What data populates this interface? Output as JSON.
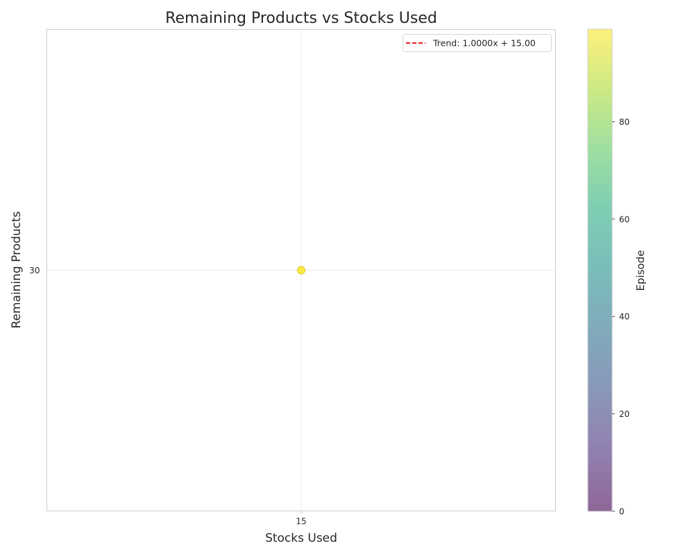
{
  "chart_data": {
    "type": "scatter",
    "title": "Remaining Products vs Stocks Used",
    "xlabel": "Stocks Used",
    "ylabel": "Remaining Products",
    "x_ticks": [
      15
    ],
    "y_ticks": [
      30
    ],
    "xlim": [
      14.5,
      15.5
    ],
    "ylim": [
      29.5,
      30.5
    ],
    "grid": true,
    "points": [
      {
        "x": 15,
        "y": 30,
        "episode": 99
      }
    ],
    "trend": {
      "label": "Trend: 1.0000x + 15.00",
      "slope": 1.0,
      "intercept": 15.0,
      "color": "#e41a1c"
    },
    "legend_position": "top-right",
    "colorbar": {
      "label": "Episode",
      "min": 0,
      "max": 99,
      "ticks": [
        0,
        20,
        40,
        60,
        80
      ],
      "colormap": "viridis",
      "alpha": 0.6
    }
  }
}
